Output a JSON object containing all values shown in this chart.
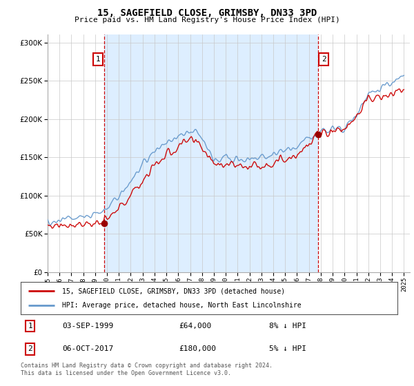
{
  "title": "15, SAGEFIELD CLOSE, GRIMSBY, DN33 3PD",
  "subtitle": "Price paid vs. HM Land Registry's House Price Index (HPI)",
  "legend_line1": "15, SAGEFIELD CLOSE, GRIMSBY, DN33 3PD (detached house)",
  "legend_line2": "HPI: Average price, detached house, North East Lincolnshire",
  "transaction1_date": "03-SEP-1999",
  "transaction1_price": "£64,000",
  "transaction1_hpi": "8% ↓ HPI",
  "transaction2_date": "06-OCT-2017",
  "transaction2_price": "£180,000",
  "transaction2_hpi": "5% ↓ HPI",
  "footer": "Contains HM Land Registry data © Crown copyright and database right 2024.\nThis data is licensed under the Open Government Licence v3.0.",
  "price_color": "#cc0000",
  "hpi_color": "#6699cc",
  "vline_color": "#cc0000",
  "marker_color": "#990000",
  "shade_color": "#ddeeff",
  "ylim": [
    0,
    310000
  ],
  "yticks": [
    0,
    50000,
    100000,
    150000,
    200000,
    250000,
    300000
  ],
  "transaction1_x": 1999.75,
  "transaction1_y": 64000,
  "transaction2_x": 2017.75,
  "transaction2_y": 180000,
  "xmin": 1995,
  "xmax": 2025
}
